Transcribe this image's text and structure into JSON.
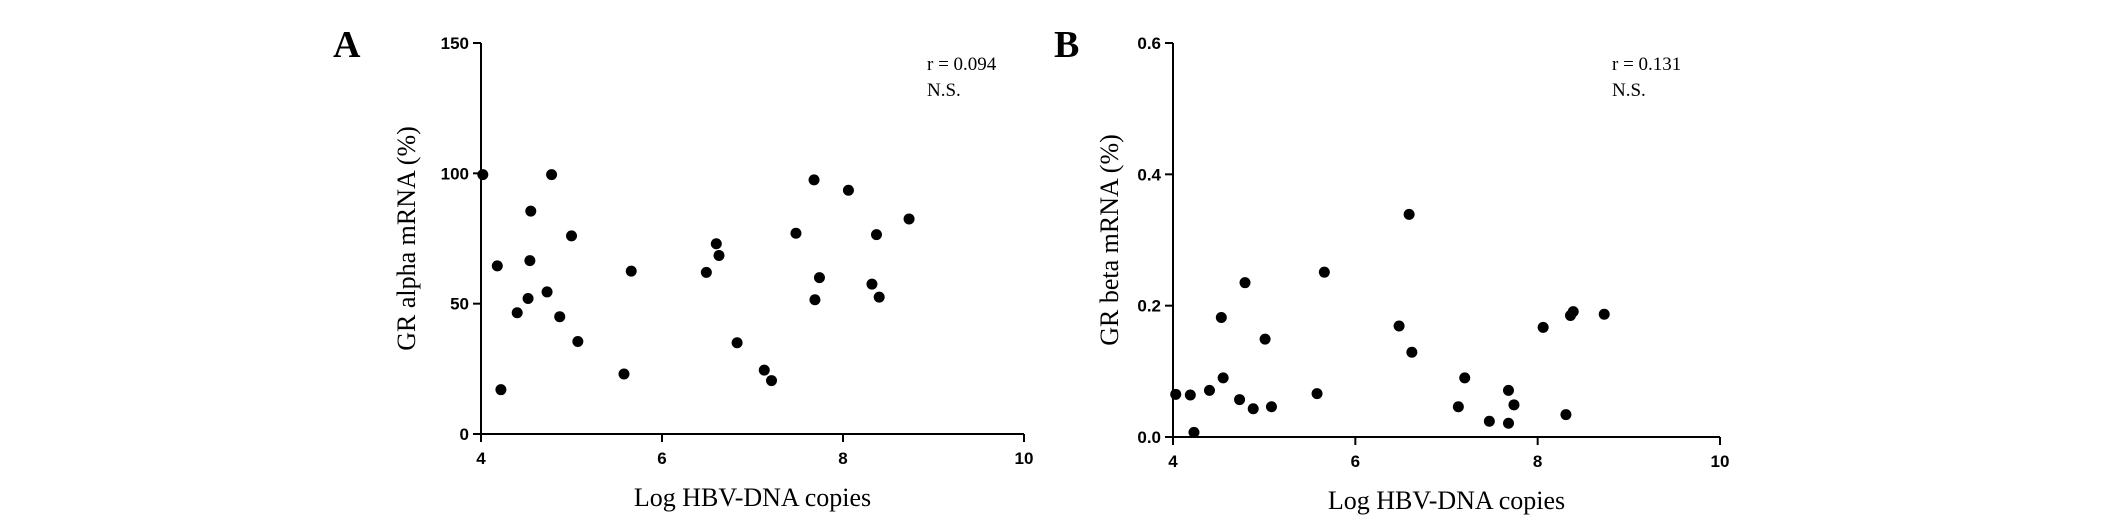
{
  "chart_data": [
    {
      "type": "scatter",
      "panel_label": "A",
      "xlabel": "Log HBV-DNA copies",
      "ylabel": "GR alpha mRNA (%)",
      "xlim": [
        4,
        10
      ],
      "ylim": [
        0,
        150
      ],
      "x_ticks": [
        "4",
        "6",
        "8",
        "10"
      ],
      "y_ticks": [
        "0",
        "50",
        "100",
        "150"
      ],
      "annotations": [
        "r = 0.094",
        "N.S."
      ],
      "grid": false,
      "points": [
        {
          "x": 4.02,
          "y": 99.5
        },
        {
          "x": 4.18,
          "y": 64.5
        },
        {
          "x": 4.22,
          "y": 17.0
        },
        {
          "x": 4.4,
          "y": 46.5
        },
        {
          "x": 4.52,
          "y": 52.0
        },
        {
          "x": 4.54,
          "y": 66.5
        },
        {
          "x": 4.55,
          "y": 85.5
        },
        {
          "x": 4.73,
          "y": 54.5
        },
        {
          "x": 4.78,
          "y": 99.5
        },
        {
          "x": 4.87,
          "y": 45.0
        },
        {
          "x": 5.0,
          "y": 76.0
        },
        {
          "x": 5.07,
          "y": 35.5
        },
        {
          "x": 5.58,
          "y": 23.0
        },
        {
          "x": 5.66,
          "y": 62.5
        },
        {
          "x": 6.49,
          "y": 62.0
        },
        {
          "x": 6.6,
          "y": 73.0
        },
        {
          "x": 6.63,
          "y": 68.5
        },
        {
          "x": 6.83,
          "y": 35.0
        },
        {
          "x": 7.13,
          "y": 24.5
        },
        {
          "x": 7.21,
          "y": 20.5
        },
        {
          "x": 7.48,
          "y": 77.0
        },
        {
          "x": 7.68,
          "y": 97.5
        },
        {
          "x": 7.69,
          "y": 51.5
        },
        {
          "x": 7.74,
          "y": 60.0
        },
        {
          "x": 8.06,
          "y": 93.5
        },
        {
          "x": 8.32,
          "y": 57.5
        },
        {
          "x": 8.37,
          "y": 76.5
        },
        {
          "x": 8.4,
          "y": 52.5
        },
        {
          "x": 8.73,
          "y": 82.5
        }
      ]
    },
    {
      "type": "scatter",
      "panel_label": "B",
      "xlabel": "Log HBV-DNA copies",
      "ylabel": "GR beta mRNA (%)",
      "xlim": [
        4,
        10
      ],
      "ylim": [
        0,
        0.6
      ],
      "x_ticks": [
        "4",
        "6",
        "8",
        "10"
      ],
      "y_ticks": [
        "0.0",
        "0.2",
        "0.4",
        "0.6"
      ],
      "annotations": [
        "r = 0.131",
        "N.S."
      ],
      "grid": false,
      "points": [
        {
          "x": 4.03,
          "y": 0.065
        },
        {
          "x": 4.19,
          "y": 0.064
        },
        {
          "x": 4.23,
          "y": 0.007
        },
        {
          "x": 4.4,
          "y": 0.071
        },
        {
          "x": 4.53,
          "y": 0.182
        },
        {
          "x": 4.55,
          "y": 0.09
        },
        {
          "x": 4.73,
          "y": 0.057
        },
        {
          "x": 4.79,
          "y": 0.235
        },
        {
          "x": 4.88,
          "y": 0.043
        },
        {
          "x": 5.01,
          "y": 0.149
        },
        {
          "x": 5.08,
          "y": 0.046
        },
        {
          "x": 5.58,
          "y": 0.066
        },
        {
          "x": 5.66,
          "y": 0.251
        },
        {
          "x": 6.48,
          "y": 0.169
        },
        {
          "x": 6.59,
          "y": 0.339
        },
        {
          "x": 6.62,
          "y": 0.129
        },
        {
          "x": 7.13,
          "y": 0.046
        },
        {
          "x": 7.2,
          "y": 0.09
        },
        {
          "x": 7.47,
          "y": 0.024
        },
        {
          "x": 7.68,
          "y": 0.071
        },
        {
          "x": 7.68,
          "y": 0.021
        },
        {
          "x": 7.74,
          "y": 0.049
        },
        {
          "x": 8.06,
          "y": 0.167
        },
        {
          "x": 8.31,
          "y": 0.034
        },
        {
          "x": 8.36,
          "y": 0.185
        },
        {
          "x": 8.39,
          "y": 0.191
        },
        {
          "x": 8.73,
          "y": 0.187
        }
      ]
    }
  ]
}
